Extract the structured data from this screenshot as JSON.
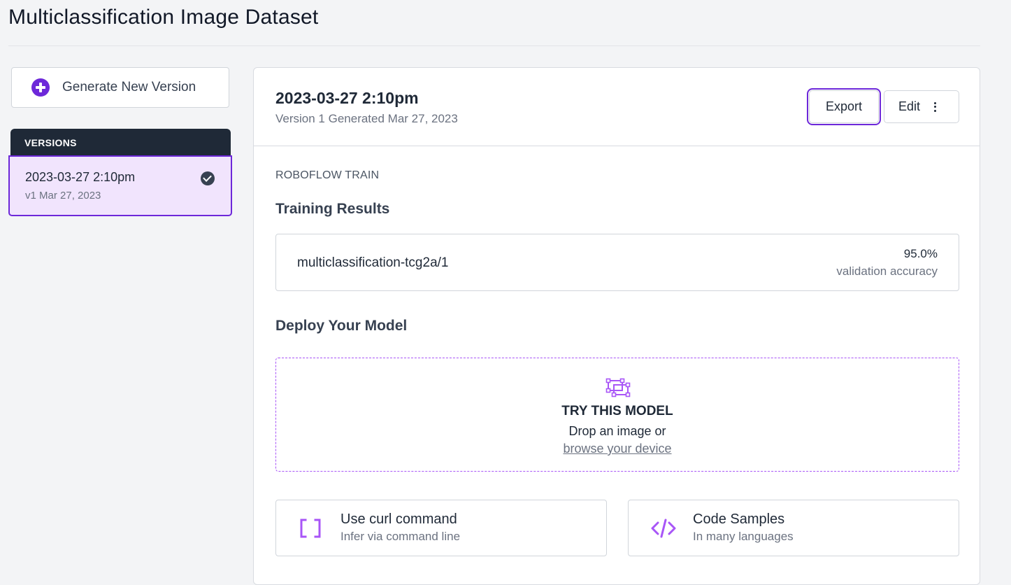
{
  "page": {
    "title": "Multiclassification Image Dataset"
  },
  "sidebar": {
    "generate_label": "Generate New Version",
    "versions_header": "VERSIONS",
    "versions": [
      {
        "title": "2023-03-27 2:10pm",
        "subtitle": "v1 Mar 27, 2023"
      }
    ]
  },
  "version": {
    "title": "2023-03-27 2:10pm",
    "subtitle": "Version 1 Generated Mar 27, 2023",
    "export_label": "Export",
    "edit_label": "Edit"
  },
  "train": {
    "kicker": "ROBOFLOW TRAIN",
    "heading": "Training Results",
    "model_id": "multiclassification-tcg2a/1",
    "accuracy": "95.0%",
    "accuracy_label": "validation accuracy"
  },
  "deploy": {
    "heading": "Deploy Your Model",
    "try_title": "TRY THIS MODEL",
    "try_line": "Drop an image or",
    "try_link": "browse your device",
    "options": [
      {
        "title": "Use curl command",
        "subtitle": "Infer via command line",
        "icon": "brackets-icon"
      },
      {
        "title": "Code Samples",
        "subtitle": "In many languages",
        "icon": "code-icon"
      }
    ]
  },
  "colors": {
    "accent": "#6d28d9",
    "accent_light": "#a855f7",
    "selected_bg": "#f1e4fd",
    "dark_header": "#1f2937"
  }
}
